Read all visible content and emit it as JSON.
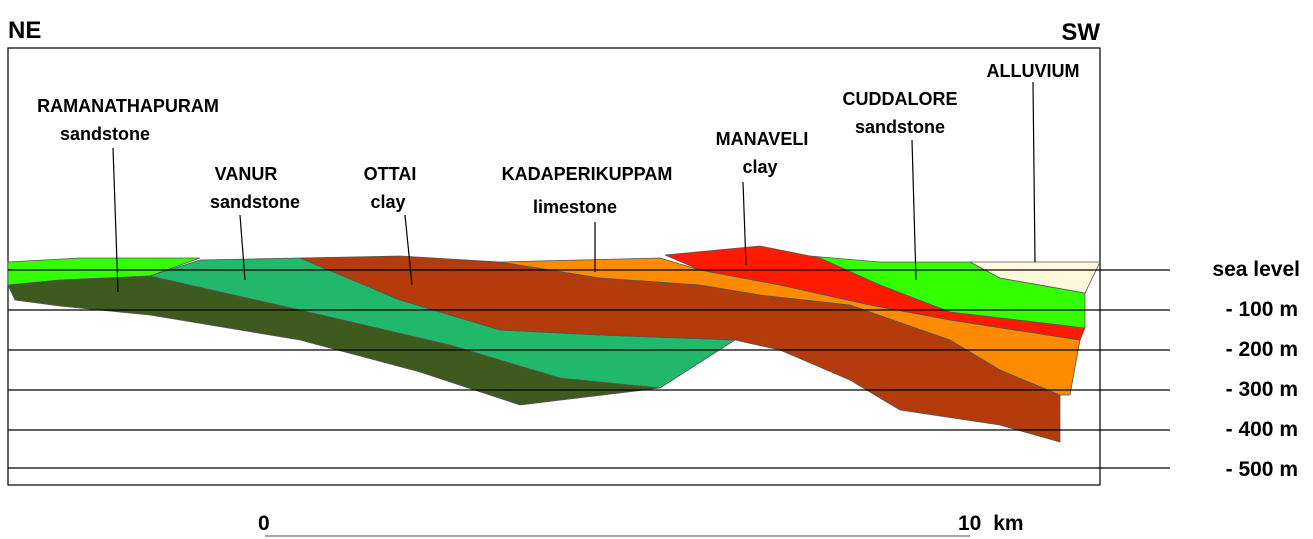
{
  "header": {
    "left": "NE",
    "right": "SW"
  },
  "formations": [
    {
      "name": "RAMANATHAPURAM",
      "rock": "sandstone"
    },
    {
      "name": "VANUR",
      "rock": "sandstone"
    },
    {
      "name": "OTTAI",
      "rock": "clay"
    },
    {
      "name": "KADAPERIKUPPAM",
      "rock": "limestone"
    },
    {
      "name": "MANAVELI",
      "rock": "clay"
    },
    {
      "name": "CUDDALORE",
      "rock": "sandstone"
    },
    {
      "name": "ALLUVIUM"
    }
  ],
  "depth_levels": [
    "sea level",
    "- 100 m",
    "- 200 m",
    "- 300 m",
    "- 400 m",
    "- 500 m"
  ],
  "scale": {
    "start": "0",
    "end": "10 km"
  }
}
